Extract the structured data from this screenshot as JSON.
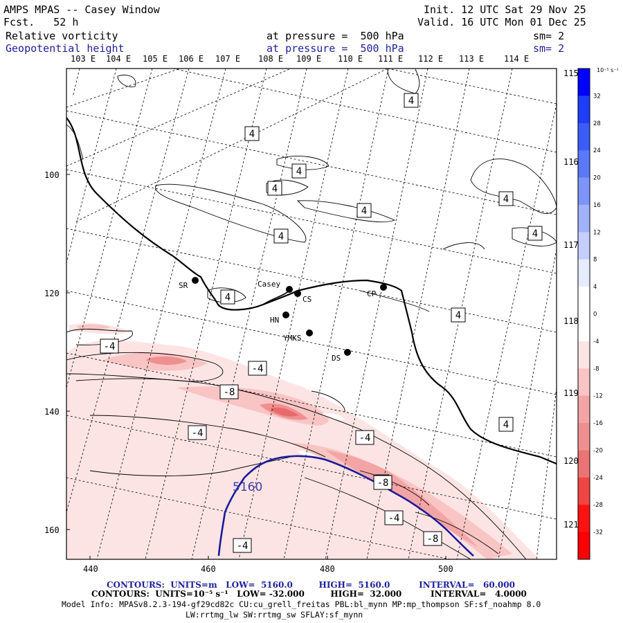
{
  "header": {
    "title": "AMPS MPAS -- Casey Window",
    "forecast": "Fcst.   52 h",
    "init": "Init. 12 UTC Sat 29 Nov 25",
    "valid": "Valid. 16 UTC Mon 01 Dec 25",
    "field1_name": "Relative vorticity",
    "field1_level": "at pressure =  500 hPa",
    "field1_sm": "sm= 2",
    "field2_name": "Geopotential height",
    "field2_level": "at pressure =  500 hPa",
    "field2_sm": "sm= 2"
  },
  "map": {
    "top_lon_labels": [
      "103 E",
      "104 E",
      "105 E",
      "106 E",
      "107 E",
      "108 E",
      "109 E",
      "110 E",
      "111 E",
      "112 E",
      "113 E",
      "114 E"
    ],
    "right_lat_labels": [
      "115 E",
      "116 E",
      "117 E",
      "118 E",
      "119 E",
      "120 E",
      "121 E"
    ],
    "x_ticks": [
      "440",
      "460",
      "480",
      "500"
    ],
    "y_ticks": [
      "100",
      "120",
      "140",
      "160"
    ],
    "stations": [
      "SR",
      "Casey",
      "CS",
      "CP",
      "HN",
      "YMKS",
      "DS"
    ],
    "contour_labels": [
      "4",
      "4",
      "4",
      "4",
      "4",
      "4",
      "4",
      "4",
      "4",
      "4",
      "4",
      "4",
      "-4",
      "-4",
      "-8",
      "-4",
      "-4",
      "-8",
      "-4",
      "-8",
      "-4"
    ],
    "height_label": "5160",
    "colors": {
      "coast": "#000000",
      "height_contour": "#1a1a9c",
      "neg_light": "#fde4e4",
      "neg_mid": "#f8c4c4",
      "neg_strong": "#ef9090",
      "neg_max": "#e86a6a"
    }
  },
  "colorbar": {
    "unit_label": "10⁻⁵ s⁻¹",
    "tick_labels": [
      "32",
      "28",
      "24",
      "20",
      "16",
      "12",
      "8",
      "4",
      "0",
      "-4",
      "-8",
      "-12",
      "-16",
      "-20",
      "-24",
      "-28",
      "-32"
    ],
    "colors": [
      "#0000ff",
      "#1d3ef6",
      "#3b5cf7",
      "#5b78f8",
      "#7d95f9",
      "#a0b2fb",
      "#c4cffd",
      "#e6ebff",
      "#ffffff",
      "#ffffff",
      "#fde4e4",
      "#f8c4c4",
      "#f3a5a5",
      "#ef9090",
      "#ec7373",
      "#f04545",
      "#ff1212",
      "#ff0000"
    ]
  },
  "footer": {
    "line1": "CONTOURS:  UNITS=m   LOW=  5160.0         HIGH=  5160.0          INTERVAL=   60.000",
    "line2": "CONTOURS:  UNITS=10⁻⁵ s⁻¹   LOW= -32.000         HIGH=  32.000          INTERVAL=   4.0000",
    "line3": "Model Info: MPASv8.2.3-194-gf29cd82c CU:cu_grell_freitas PBL:bl_mynn MP:mp_thompson SF:sf_noahmp 8.0",
    "line4": "LW:rrtmg_lw SW:rrtmg_sw SFLAY:sf_mynn"
  }
}
